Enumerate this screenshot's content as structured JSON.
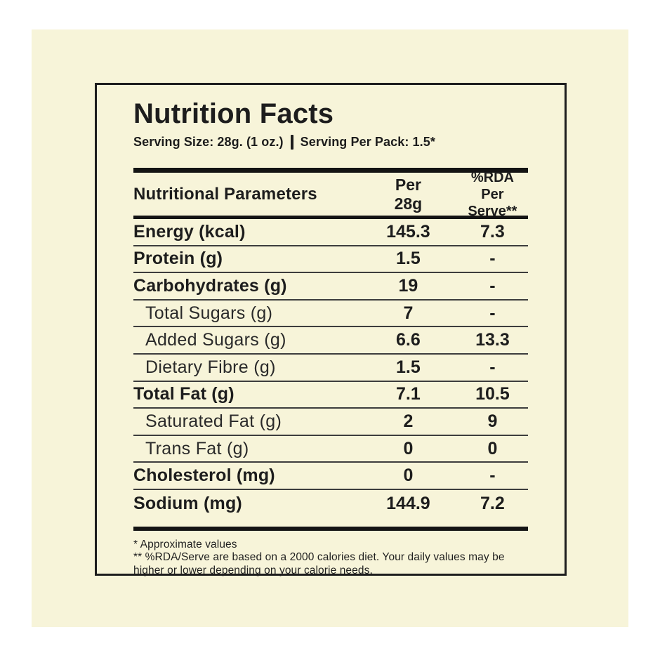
{
  "label": {
    "title": "Nutrition Facts",
    "serving_size": "Serving Size: 28g. (1 oz.)",
    "serving_per_pack": "Serving Per Pack: 1.5*"
  },
  "table": {
    "header": {
      "parameter": "Nutritional Parameters",
      "per_line1": "Per",
      "per_line2": "28g",
      "rda_line1": "%RDA",
      "rda_line2": "Per Serve**"
    },
    "rows": [
      {
        "label": "Energy (kcal)",
        "per": "145.3",
        "rda": "7.3",
        "style": "bold"
      },
      {
        "label": "Protein (g)",
        "per": "1.5",
        "rda": "-",
        "style": "bold"
      },
      {
        "label": "Carbohydrates (g)",
        "per": "19",
        "rda": "-",
        "style": "bold"
      },
      {
        "label": "Total Sugars (g)",
        "per": "7",
        "rda": "-",
        "style": "indent"
      },
      {
        "label": "Added Sugars (g)",
        "per": "6.6",
        "rda": "13.3",
        "style": "indent"
      },
      {
        "label": "Dietary Fibre (g)",
        "per": "1.5",
        "rda": "-",
        "style": "indent"
      },
      {
        "label": "Total Fat (g)",
        "per": "7.1",
        "rda": "10.5",
        "style": "bold"
      },
      {
        "label": "Saturated Fat (g)",
        "per": "2",
        "rda": "9",
        "style": "indent"
      },
      {
        "label": "Trans Fat (g)",
        "per": "0",
        "rda": "0",
        "style": "indent"
      },
      {
        "label": "Cholesterol (mg)",
        "per": "0",
        "rda": "-",
        "style": "bold"
      },
      {
        "label": "Sodium (mg)",
        "per": "144.9",
        "rda": "7.2",
        "style": "bold"
      }
    ]
  },
  "footnotes": {
    "line1": "* Approximate values",
    "line2": "** %RDA/Serve are based on a 2000 calories diet. Your daily values may be higher or lower depending on your calorie needs."
  },
  "colors": {
    "background": "#ffffff",
    "panel": "#f7f4d9",
    "text": "#1d1d1d",
    "border": "#1d1d1d",
    "rule": "#3d3d3d"
  }
}
